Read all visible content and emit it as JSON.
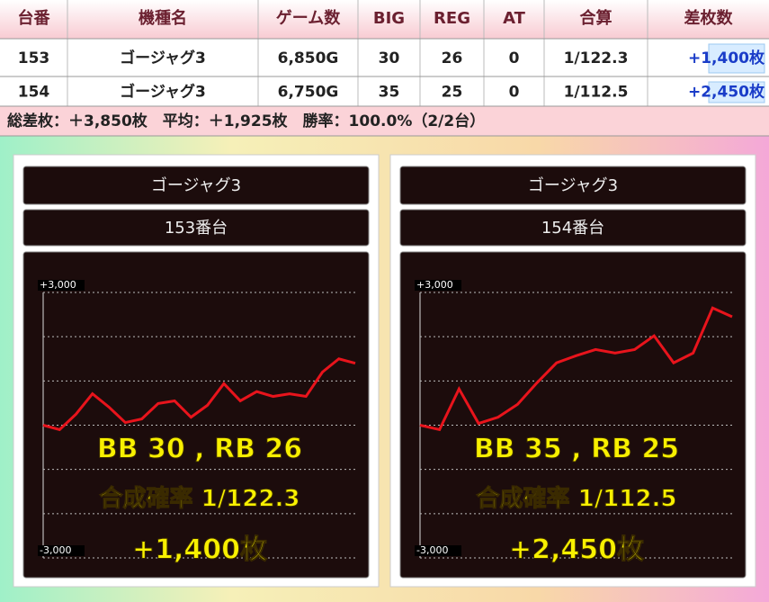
{
  "table": {
    "headers": [
      "台番",
      "機種名",
      "ゲーム数",
      "BIG",
      "REG",
      "AT",
      "合算",
      "差枚数"
    ],
    "rows": [
      [
        "153",
        "ゴージャグ3",
        "6,850G",
        "30",
        "26",
        "0",
        "1/122.3",
        "+1,400枚"
      ],
      [
        "154",
        "ゴージャグ3",
        "6,750G",
        "35",
        "25",
        "0",
        "1/112.5",
        "+2,450枚"
      ]
    ]
  },
  "summary": "総差枚：＋3,850枚　平均：＋1,925枚　勝率：100.0%（2/2台）",
  "chart_data": [
    {
      "type": "line",
      "title": "ゴージャグ3",
      "subtitle": "153番台",
      "x": [
        0,
        1,
        2,
        3,
        4,
        5,
        6,
        7,
        8,
        9,
        10,
        11,
        12,
        13,
        14,
        15,
        16,
        17,
        18,
        19
      ],
      "xlim": [
        0,
        19
      ],
      "values": [
        0,
        -100,
        250,
        710,
        410,
        60,
        140,
        490,
        550,
        180,
        450,
        940,
        550,
        760,
        650,
        710,
        650,
        1200,
        1500,
        1400
      ],
      "color": "#e8141c",
      "ylim": [
        -3000,
        3000
      ],
      "yticks": [
        {
          "value": 3000,
          "label": "+3,000"
        },
        {
          "value": 2000,
          "label": null
        },
        {
          "value": 1000,
          "label": null
        },
        {
          "value": 0,
          "label": null
        },
        {
          "value": -1000,
          "label": null
        },
        {
          "value": -2000,
          "label": null
        },
        {
          "value": -3000,
          "label": "-3,000"
        }
      ],
      "annotations": [
        "BB 30 , RB 26",
        "合成確率  1/122.3",
        "+1,400枚"
      ]
    },
    {
      "type": "line",
      "title": "ゴージャグ3",
      "subtitle": "154番台",
      "x": [
        0,
        1,
        2,
        3,
        4,
        5,
        6,
        7,
        8,
        9,
        10,
        11,
        12,
        13,
        14,
        15,
        16
      ],
      "xlim": [
        0,
        16
      ],
      "values": [
        0,
        -100,
        820,
        40,
        180,
        470,
        960,
        1410,
        1570,
        1710,
        1630,
        1710,
        2020,
        1410,
        1630,
        2650,
        2450
      ],
      "color": "#e8141c",
      "ylim": [
        -3000,
        3000
      ],
      "yticks": [
        {
          "value": 3000,
          "label": "+3,000"
        },
        {
          "value": 2000,
          "label": null
        },
        {
          "value": 1000,
          "label": null
        },
        {
          "value": 0,
          "label": null
        },
        {
          "value": -1000,
          "label": null
        },
        {
          "value": -2000,
          "label": null
        },
        {
          "value": -3000,
          "label": "-3,000"
        }
      ],
      "annotations": [
        "BB 35 , RB 25",
        "合成確率  1/112.5",
        "+2,450枚"
      ]
    }
  ]
}
